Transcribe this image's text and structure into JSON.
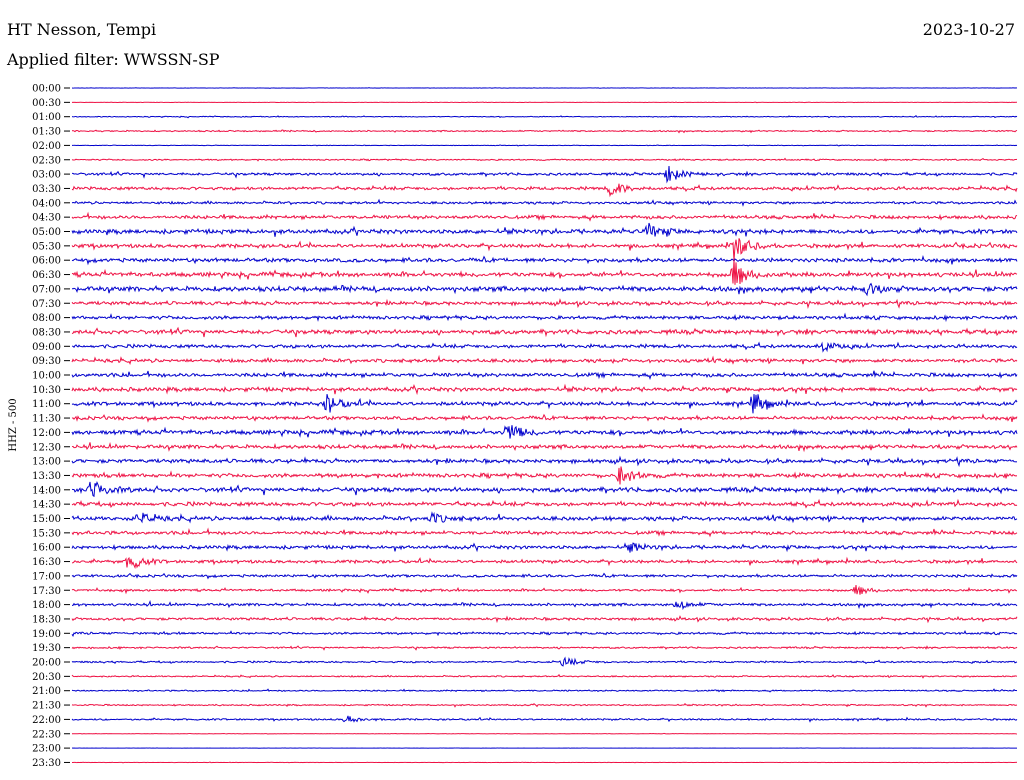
{
  "header": {
    "station": "HT Nesson, Tempi",
    "date": "2023-10-27",
    "filter": "Applied filter: WWSSN-SP"
  },
  "chart_data": {
    "type": "line",
    "ylabel": "HHZ - 500",
    "colors": [
      "#0000cc",
      "#ee1144"
    ],
    "rows": [
      "00:00",
      "00:30",
      "01:00",
      "01:30",
      "02:00",
      "02:30",
      "03:00",
      "03:30",
      "04:00",
      "04:30",
      "05:00",
      "05:30",
      "06:00",
      "06:30",
      "07:00",
      "07:30",
      "08:00",
      "08:30",
      "09:00",
      "09:30",
      "10:00",
      "10:30",
      "11:00",
      "11:30",
      "12:00",
      "12:30",
      "13:00",
      "13:30",
      "14:00",
      "14:30",
      "15:00",
      "15:30",
      "16:00",
      "16:30",
      "17:00",
      "17:30",
      "18:00",
      "18:30",
      "19:00",
      "19:30",
      "20:00",
      "20:30",
      "21:00",
      "21:30",
      "22:00",
      "22:30",
      "23:00",
      "23:30"
    ],
    "noise": [
      0.2,
      0.2,
      0.5,
      0.8,
      0.3,
      0.8,
      1.5,
      1.8,
      1.4,
      2.0,
      2.5,
      2.2,
      2.2,
      2.5,
      2.8,
      2.0,
      2.0,
      2.5,
      2.0,
      2.0,
      2.2,
      2.3,
      2.2,
      2.0,
      2.5,
      2.2,
      2.2,
      2.3,
      2.6,
      2.3,
      2.3,
      2.0,
      2.0,
      1.8,
      1.5,
      1.3,
      1.5,
      1.5,
      1.3,
      1.0,
      1.0,
      0.8,
      0.8,
      0.8,
      1.0,
      0.2,
      0.1,
      0.2
    ],
    "events": [
      {
        "row": 6,
        "pos": 0.63,
        "amp": 9
      },
      {
        "row": 7,
        "pos": 0.57,
        "amp": 8
      },
      {
        "row": 10,
        "pos": 0.61,
        "amp": 8
      },
      {
        "row": 11,
        "pos": 0.7,
        "amp": 14
      },
      {
        "row": 13,
        "pos": 0.7,
        "amp": 14
      },
      {
        "row": 14,
        "pos": 0.84,
        "amp": 6
      },
      {
        "row": 18,
        "pos": 0.79,
        "amp": 6
      },
      {
        "row": 22,
        "pos": 0.27,
        "amp": 10
      },
      {
        "row": 22,
        "pos": 0.72,
        "amp": 11
      },
      {
        "row": 24,
        "pos": 0.46,
        "amp": 10
      },
      {
        "row": 27,
        "pos": 0.58,
        "amp": 11
      },
      {
        "row": 28,
        "pos": 0.02,
        "amp": 11
      },
      {
        "row": 30,
        "pos": 0.07,
        "amp": 6
      },
      {
        "row": 30,
        "pos": 0.38,
        "amp": 5
      },
      {
        "row": 32,
        "pos": 0.59,
        "amp": 5
      },
      {
        "row": 33,
        "pos": 0.06,
        "amp": 9
      },
      {
        "row": 35,
        "pos": 0.83,
        "amp": 5
      },
      {
        "row": 36,
        "pos": 0.64,
        "amp": 5
      },
      {
        "row": 40,
        "pos": 0.52,
        "amp": 5
      },
      {
        "row": 44,
        "pos": 0.29,
        "amp": 4
      }
    ]
  }
}
